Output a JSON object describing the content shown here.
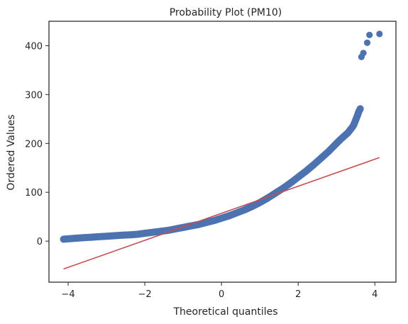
{
  "chart_data": {
    "type": "scatter",
    "title": "Probability Plot (PM10)",
    "xlabel": "Theoretical quantiles",
    "ylabel": "Ordered Values",
    "xlim": [
      -4.5,
      4.55
    ],
    "ylim": [
      -84,
      450
    ],
    "x_ticks": [
      -4,
      -2,
      0,
      2,
      4
    ],
    "x_tick_labels": [
      "−4",
      "−2",
      "0",
      "2",
      "4"
    ],
    "y_ticks": [
      0,
      100,
      200,
      300,
      400
    ],
    "y_tick_labels": [
      "0",
      "100",
      "200",
      "300",
      "400"
    ],
    "grid": false,
    "colors": {
      "points": "#4C72B0",
      "fit_line": "#C44E52",
      "axes": "#262626"
    },
    "series": [
      {
        "kind": "points",
        "x": [
          -4.12,
          -3.8,
          -3.6,
          -3.4,
          -3.2,
          -3.0,
          -2.8,
          -2.6,
          -2.4,
          -2.2,
          -2.0,
          -1.8,
          -1.6,
          -1.4,
          -1.2,
          -1.0,
          -0.8,
          -0.6,
          -0.4,
          -0.2,
          0.0,
          0.2,
          0.4,
          0.6,
          0.8,
          1.0,
          1.2,
          1.4,
          1.6,
          1.8,
          2.0,
          2.2,
          2.4,
          2.6,
          2.8,
          3.0,
          3.1,
          3.2,
          3.3,
          3.4,
          3.45,
          3.5,
          3.55,
          3.58,
          3.6,
          3.62,
          3.65,
          3.7,
          3.8,
          3.86,
          4.12
        ],
        "y": [
          4,
          6,
          7,
          8,
          9,
          10,
          11,
          12,
          13,
          14,
          16,
          18,
          20,
          22,
          25,
          28,
          31,
          34,
          38,
          42,
          47,
          52,
          58,
          64,
          71,
          79,
          88,
          98,
          108,
          119,
          131,
          143,
          156,
          170,
          184,
          200,
          208,
          215,
          222,
          232,
          238,
          248,
          258,
          265,
          268,
          271,
          377,
          385,
          406,
          422,
          424
        ]
      },
      {
        "kind": "fit_line",
        "x": [
          -4.12,
          4.12
        ],
        "y": [
          -57,
          171
        ]
      }
    ]
  }
}
